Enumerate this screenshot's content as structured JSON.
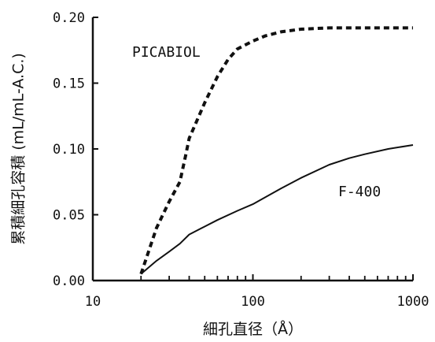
{
  "chart_data": {
    "type": "line",
    "xlabel": "細孔直径（Å）",
    "ylabel": "累積細孔容積 (mL/mL-A.C.)",
    "x_scale": "log",
    "xlim": [
      10,
      1000
    ],
    "ylim": [
      0,
      0.2
    ],
    "x_ticks": [
      10,
      100,
      1000
    ],
    "x_tick_labels": [
      "10",
      "100",
      "1000"
    ],
    "y_ticks": [
      0.0,
      0.05,
      0.1,
      0.15,
      0.2
    ],
    "y_tick_labels": [
      "0.00",
      "0.05",
      "0.10",
      "0.15",
      "0.20"
    ],
    "grid": false,
    "series": [
      {
        "name": "PICABIOL",
        "style": "dashed",
        "color": "#111111",
        "x": [
          20,
          25,
          30,
          35,
          38,
          40,
          50,
          60,
          70,
          80,
          100,
          120,
          150,
          200,
          300,
          500,
          1000
        ],
        "y": [
          0.005,
          0.04,
          0.06,
          0.075,
          0.095,
          0.108,
          0.135,
          0.155,
          0.168,
          0.176,
          0.182,
          0.186,
          0.189,
          0.191,
          0.192,
          0.192,
          0.192
        ]
      },
      {
        "name": "F-400",
        "style": "solid",
        "color": "#111111",
        "x": [
          20,
          25,
          30,
          35,
          40,
          50,
          60,
          80,
          100,
          150,
          200,
          300,
          400,
          500,
          700,
          1000
        ],
        "y": [
          0.005,
          0.015,
          0.022,
          0.028,
          0.035,
          0.041,
          0.046,
          0.053,
          0.058,
          0.07,
          0.078,
          0.088,
          0.093,
          0.096,
          0.1,
          0.103
        ]
      }
    ]
  }
}
